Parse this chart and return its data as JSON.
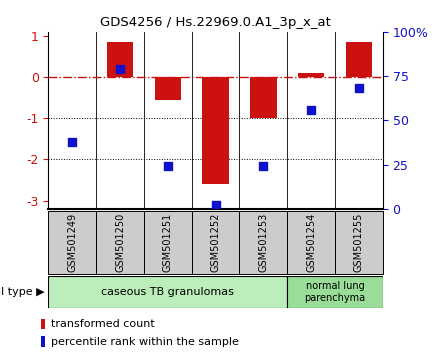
{
  "title": "GDS4256 / Hs.22969.0.A1_3p_x_at",
  "samples": [
    "GSM501249",
    "GSM501250",
    "GSM501251",
    "GSM501252",
    "GSM501253",
    "GSM501254",
    "GSM501255"
  ],
  "transformed_count": [
    0.0,
    0.85,
    -0.55,
    -2.6,
    -1.0,
    0.1,
    0.85
  ],
  "percentile_rank": [
    38,
    79,
    24,
    2,
    24,
    56,
    68
  ],
  "ylim_left": [
    -3.2,
    1.1
  ],
  "ylim_right": [
    0,
    100
  ],
  "left_ticks": [
    1,
    0,
    -1,
    -2,
    -3
  ],
  "right_ticks": [
    100,
    75,
    50,
    25,
    0
  ],
  "right_tick_labels": [
    "100%",
    "75",
    "50",
    "25",
    "0"
  ],
  "bar_color": "#cc1111",
  "dot_color": "#1111cc",
  "dotted_lines": [
    -1,
    -2
  ],
  "n_group1": 5,
  "n_group2": 2,
  "group1_label": "caseous TB granulomas",
  "group2_label": "normal lung\nparenchyma",
  "group1_color": "#bbeebb",
  "group2_color": "#99dd99",
  "cell_type_label": "cell type",
  "legend_bar_label": "transformed count",
  "legend_dot_label": "percentile rank within the sample",
  "bar_width": 0.55,
  "dot_size": 40,
  "sample_box_color": "#cccccc"
}
